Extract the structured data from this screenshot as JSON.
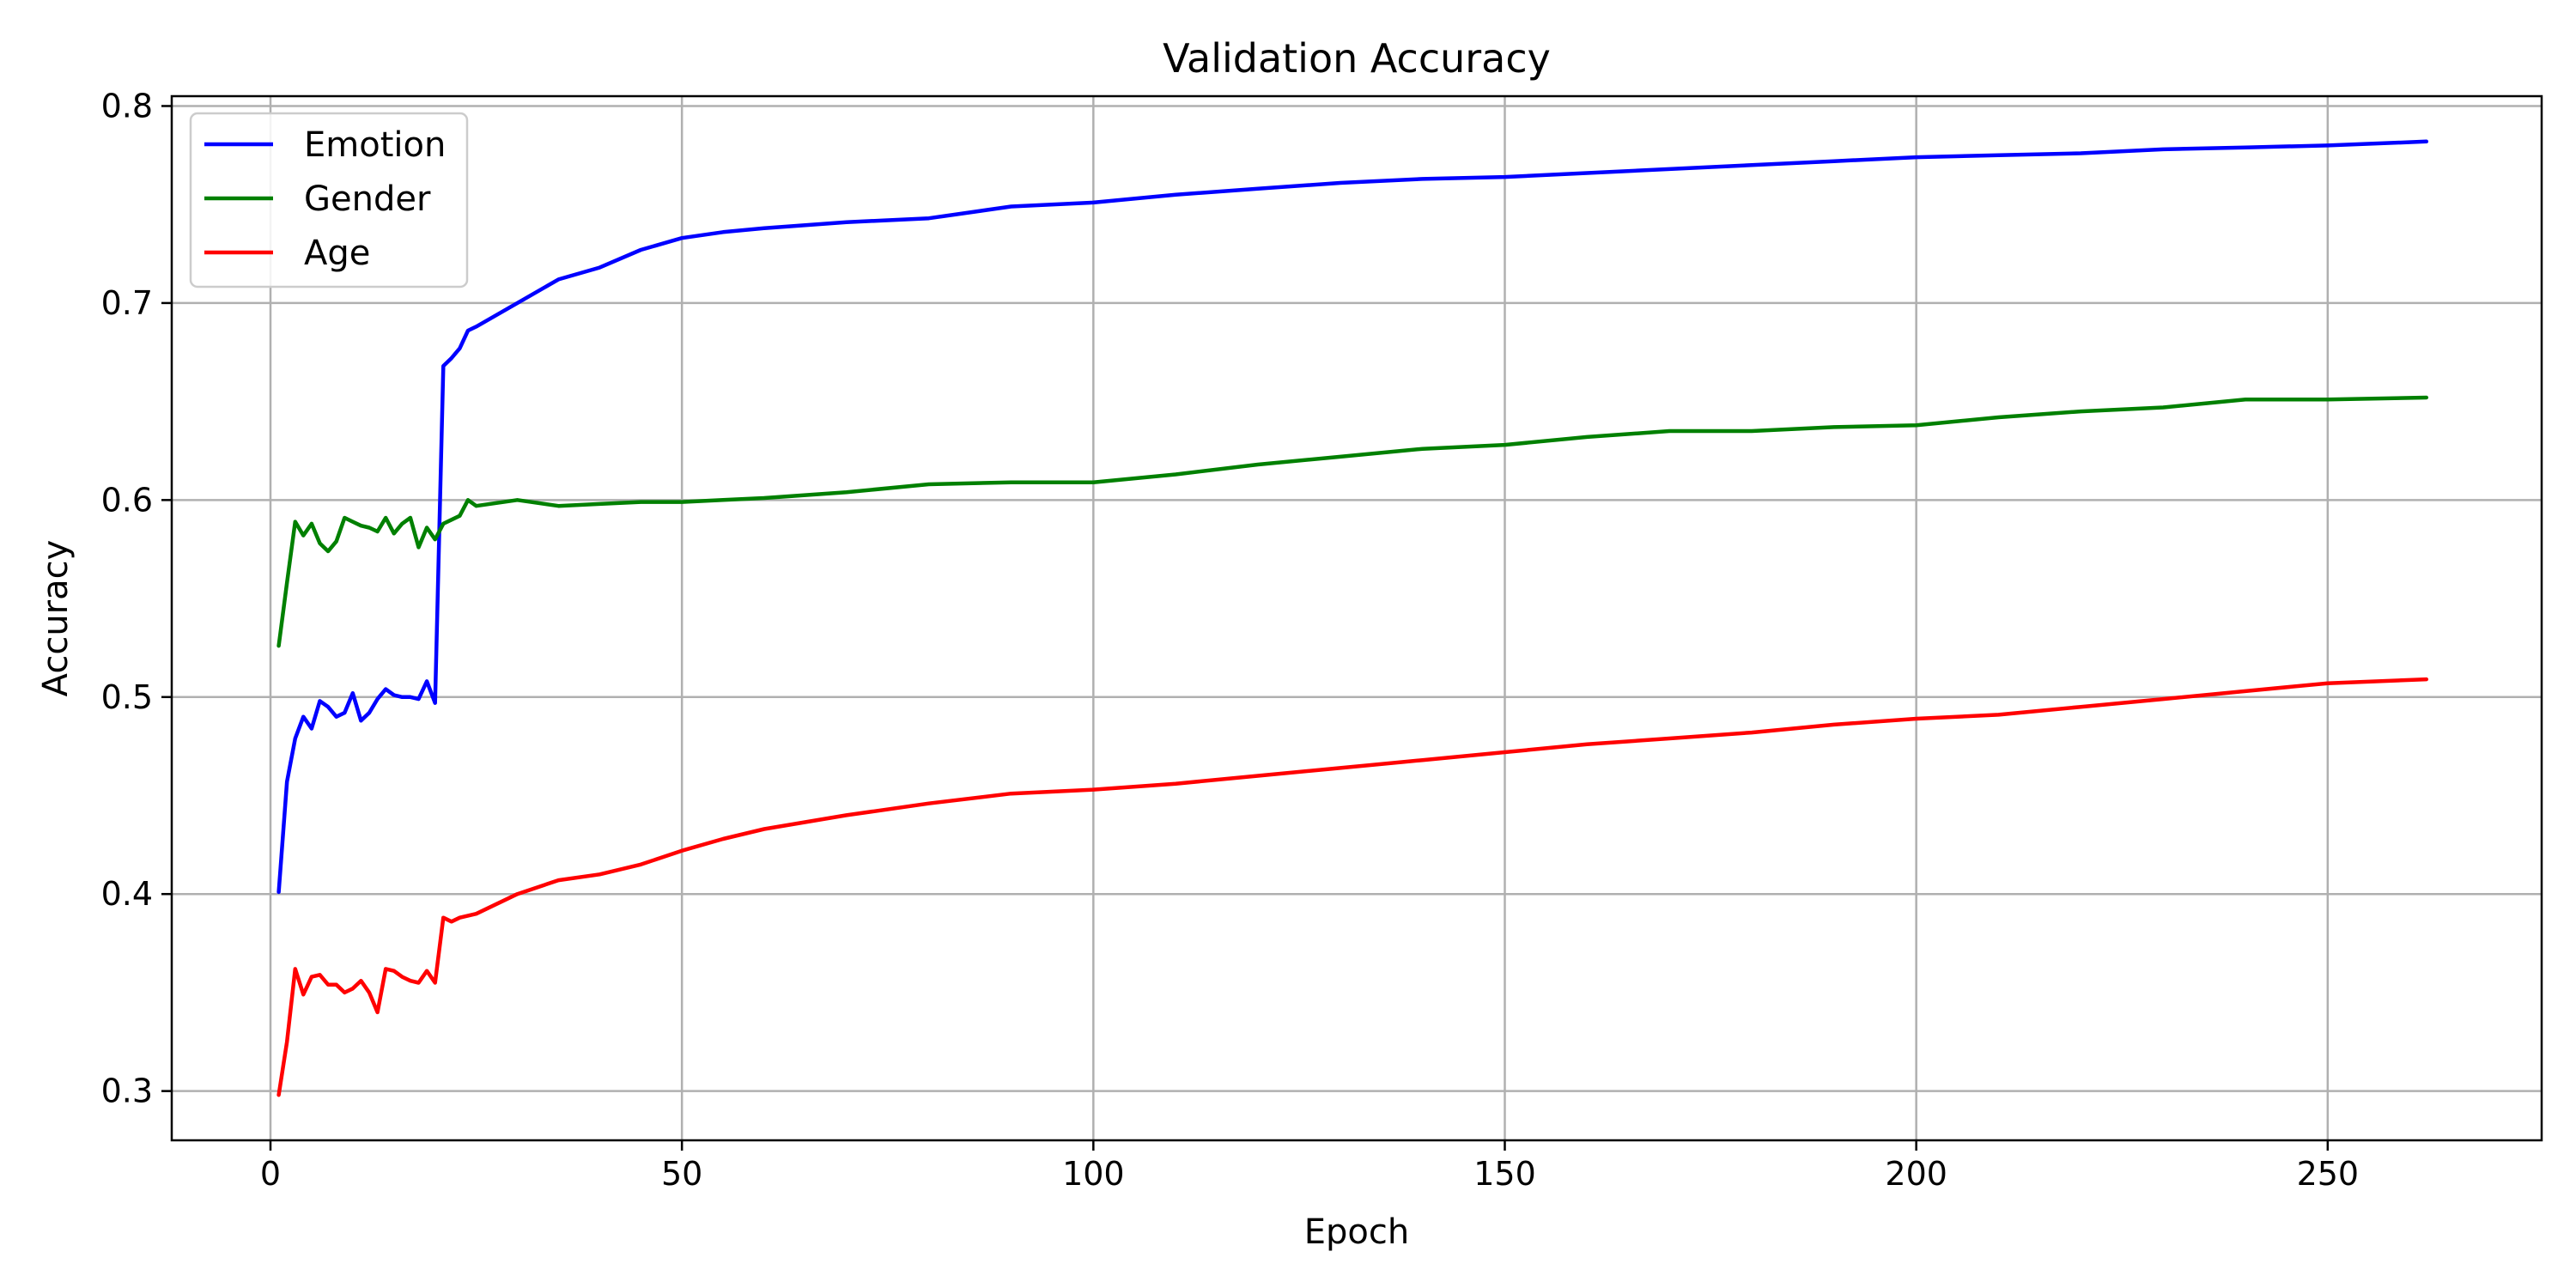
{
  "chart_data": {
    "type": "line",
    "title": "Validation Accuracy",
    "xlabel": "Epoch",
    "ylabel": "Accuracy",
    "xlim": [
      -12,
      276
    ],
    "ylim": [
      0.275,
      0.805
    ],
    "xticks": [
      0,
      50,
      100,
      150,
      200,
      250
    ],
    "yticks": [
      0.3,
      0.4,
      0.5,
      0.6,
      0.7,
      0.8
    ],
    "xtick_labels": [
      "0",
      "50",
      "100",
      "150",
      "200",
      "250"
    ],
    "ytick_labels": [
      "0.3",
      "0.4",
      "0.5",
      "0.6",
      "0.7",
      "0.8"
    ],
    "grid": true,
    "legend_position": "top-left",
    "series": [
      {
        "name": "Emotion",
        "color": "#0000ff",
        "x": [
          1,
          2,
          3,
          4,
          5,
          6,
          7,
          8,
          9,
          10,
          11,
          12,
          13,
          14,
          15,
          16,
          17,
          18,
          19,
          20,
          21,
          22,
          23,
          24,
          25,
          30,
          35,
          40,
          45,
          50,
          55,
          60,
          70,
          80,
          90,
          100,
          110,
          120,
          130,
          140,
          150,
          160,
          170,
          180,
          190,
          200,
          210,
          220,
          230,
          240,
          250,
          262
        ],
        "y": [
          0.401,
          0.457,
          0.479,
          0.49,
          0.484,
          0.498,
          0.495,
          0.49,
          0.492,
          0.502,
          0.488,
          0.492,
          0.499,
          0.504,
          0.501,
          0.5,
          0.5,
          0.499,
          0.508,
          0.497,
          0.668,
          0.672,
          0.677,
          0.686,
          0.688,
          0.7,
          0.712,
          0.718,
          0.727,
          0.733,
          0.736,
          0.738,
          0.741,
          0.743,
          0.749,
          0.751,
          0.755,
          0.758,
          0.761,
          0.763,
          0.764,
          0.766,
          0.768,
          0.77,
          0.772,
          0.774,
          0.775,
          0.776,
          0.778,
          0.779,
          0.78,
          0.782
        ]
      },
      {
        "name": "Gender",
        "color": "#008000",
        "x": [
          1,
          2,
          3,
          4,
          5,
          6,
          7,
          8,
          9,
          10,
          11,
          12,
          13,
          14,
          15,
          16,
          17,
          18,
          19,
          20,
          21,
          22,
          23,
          24,
          25,
          30,
          35,
          40,
          45,
          50,
          55,
          60,
          70,
          80,
          90,
          100,
          110,
          120,
          130,
          140,
          150,
          160,
          170,
          180,
          190,
          200,
          210,
          220,
          230,
          240,
          250,
          262
        ],
        "y": [
          0.526,
          0.558,
          0.589,
          0.582,
          0.588,
          0.578,
          0.574,
          0.579,
          0.591,
          0.589,
          0.587,
          0.586,
          0.584,
          0.591,
          0.583,
          0.588,
          0.591,
          0.576,
          0.586,
          0.58,
          0.588,
          0.59,
          0.592,
          0.6,
          0.597,
          0.6,
          0.597,
          0.598,
          0.599,
          0.599,
          0.6,
          0.601,
          0.604,
          0.608,
          0.609,
          0.609,
          0.613,
          0.618,
          0.622,
          0.626,
          0.628,
          0.632,
          0.635,
          0.635,
          0.637,
          0.638,
          0.642,
          0.645,
          0.647,
          0.651,
          0.651,
          0.652
        ]
      },
      {
        "name": "Age",
        "color": "#ff0000",
        "x": [
          1,
          2,
          3,
          4,
          5,
          6,
          7,
          8,
          9,
          10,
          11,
          12,
          13,
          14,
          15,
          16,
          17,
          18,
          19,
          20,
          21,
          22,
          23,
          24,
          25,
          30,
          35,
          40,
          45,
          50,
          55,
          60,
          70,
          80,
          90,
          100,
          110,
          120,
          130,
          140,
          150,
          160,
          170,
          180,
          190,
          200,
          210,
          220,
          230,
          240,
          250,
          262
        ],
        "y": [
          0.298,
          0.325,
          0.362,
          0.349,
          0.358,
          0.359,
          0.354,
          0.354,
          0.35,
          0.352,
          0.356,
          0.35,
          0.34,
          0.362,
          0.361,
          0.358,
          0.356,
          0.355,
          0.361,
          0.355,
          0.388,
          0.386,
          0.388,
          0.389,
          0.39,
          0.4,
          0.407,
          0.41,
          0.415,
          0.422,
          0.428,
          0.433,
          0.44,
          0.446,
          0.451,
          0.453,
          0.456,
          0.46,
          0.464,
          0.468,
          0.472,
          0.476,
          0.479,
          0.482,
          0.486,
          0.489,
          0.491,
          0.495,
          0.499,
          0.503,
          0.507,
          0.509
        ]
      }
    ]
  }
}
